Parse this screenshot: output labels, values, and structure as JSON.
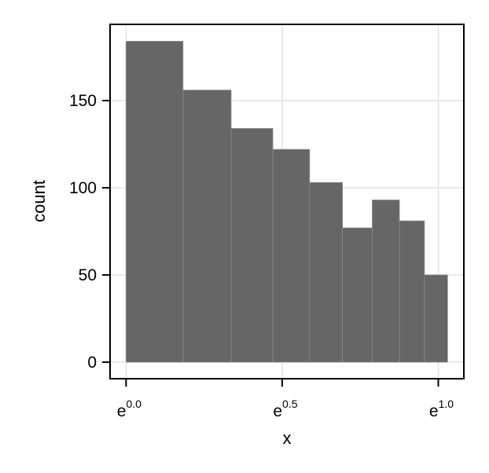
{
  "chart_data": {
    "type": "bar",
    "subtype": "histogram",
    "title": "",
    "xlabel": "x",
    "ylabel": "count",
    "xscale": "log (natural)",
    "bin_edges": [
      1.0,
      1.2,
      1.4,
      1.6,
      1.8,
      2.0,
      2.2,
      2.4,
      2.6,
      2.8
    ],
    "values": [
      184,
      156,
      134,
      122,
      103,
      77,
      93,
      81,
      50
    ],
    "xlim": [
      0.95,
      2.95
    ],
    "ylim": [
      -9.5,
      193.7
    ],
    "x_ticks": [
      {
        "value": 1.0,
        "base": "e",
        "exponent": "0.0"
      },
      {
        "value": 1.6487,
        "base": "e",
        "exponent": "0.5"
      },
      {
        "value": 2.7183,
        "base": "e",
        "exponent": "1.0"
      }
    ],
    "y_ticks": [
      0,
      50,
      100,
      150
    ],
    "y_tick_labels": [
      "0",
      "50",
      "100",
      "150"
    ],
    "grid": true,
    "bar_color": "#666666",
    "bar_edge_color": "#8a8a8a"
  }
}
